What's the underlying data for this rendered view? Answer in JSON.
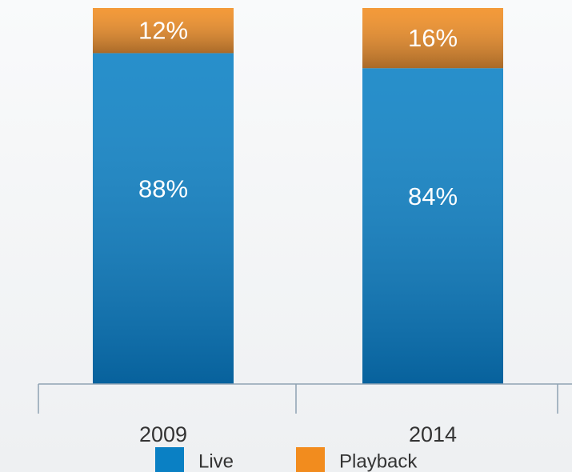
{
  "chart_data": {
    "type": "stacked_bar",
    "categories": [
      "2009",
      "2014"
    ],
    "series": [
      {
        "name": "Live",
        "color": "#0a80c4",
        "values": [
          88,
          84
        ],
        "value_labels": [
          "88%",
          "84%"
        ]
      },
      {
        "name": "Playback",
        "color": "#f28c1e",
        "values": [
          12,
          16
        ],
        "value_labels": [
          "12%",
          "16%"
        ]
      }
    ],
    "ylim": [
      0,
      100
    ]
  }
}
